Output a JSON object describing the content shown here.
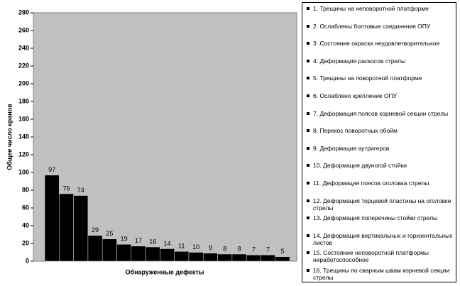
{
  "chart_data": {
    "type": "bar",
    "y_label": "Общее число кранов",
    "x_label": "Обнаруженные дефекты",
    "categories": [
      "1. Трещины на неповоротной платформе",
      "2. Ослаблены болтовые соединения ОПУ",
      "3 .Состояние окраски неудовлетворительное",
      "4. Деформация раскосов стрелы",
      "5. Трещины на поворотной платформе",
      "6. Ослаблено крепление ОПУ",
      "7. Деформация поясов корневой секции стрелы",
      "8. Перекос поворотных обойм",
      "9. Деформация аутригеров",
      "10. Деформация двуногой стойки",
      "11. Деформация поясов оголовка стрелы",
      "12. Деформация торцевой пластины на оголовке стрелы",
      "13. Деформация поперечины стойки стрелы",
      "14. Деформация вертикальных и горизонтальных листов",
      "15. Состояние неповоротной платформы неработоспособное",
      "16. Трещины по сварным швам корневой секции стрелы",
      null
    ],
    "values": [
      97,
      76,
      74,
      29,
      25,
      19,
      17,
      16,
      14,
      11,
      10,
      9,
      8,
      8,
      7,
      7,
      5
    ],
    "color": "#000000",
    "ylim": [
      0,
      280
    ],
    "yticks": [
      0,
      20,
      40,
      60,
      80,
      100,
      120,
      140,
      160,
      180,
      200,
      220,
      240,
      260,
      280
    ],
    "grid": false
  }
}
